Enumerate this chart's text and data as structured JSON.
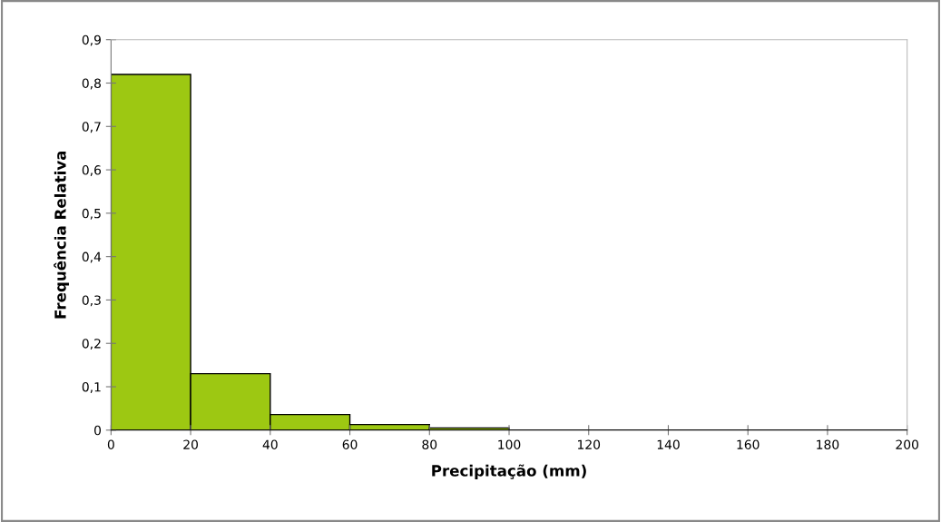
{
  "chart_data": {
    "type": "histogram",
    "xlabel": "Precipitação (mm)",
    "ylabel": "Frequência Relativa",
    "bins": [
      0,
      20,
      40,
      60,
      80,
      100,
      120,
      140,
      160,
      180,
      200
    ],
    "values": [
      0.82,
      0.13,
      0.036,
      0.013,
      0.005,
      0,
      0,
      0,
      0,
      0
    ],
    "color": "#9dc812",
    "xlim": [
      0,
      200
    ],
    "xticks": [
      0,
      20,
      40,
      60,
      80,
      100,
      120,
      140,
      160,
      180,
      200
    ],
    "ylim": [
      0,
      0.9
    ],
    "yticks": [
      {
        "value": 0,
        "label": "0"
      },
      {
        "value": 0.1,
        "label": "0,1"
      },
      {
        "value": 0.2,
        "label": "0,2"
      },
      {
        "value": 0.3,
        "label": "0,3"
      },
      {
        "value": 0.4,
        "label": "0,4"
      },
      {
        "value": 0.5,
        "label": "0,5"
      },
      {
        "value": 0.6,
        "label": "0,6"
      },
      {
        "value": 0.7,
        "label": "0,7"
      },
      {
        "value": 0.8,
        "label": "0,8"
      },
      {
        "value": 0.9,
        "label": "0,9"
      }
    ],
    "grid": false
  }
}
